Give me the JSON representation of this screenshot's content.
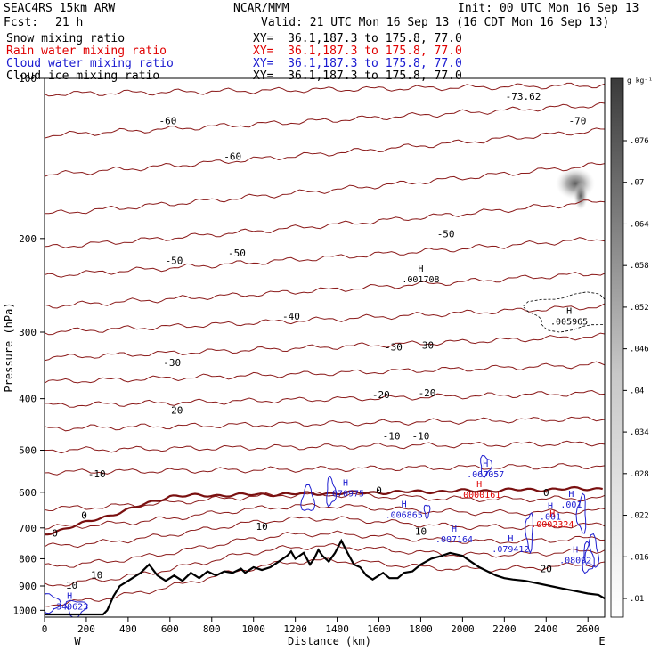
{
  "header": {
    "model": "SEAC4RS 15km ARW",
    "org": "NCAR/MMM",
    "init": "Init: 00 UTC Mon 16 Sep 13",
    "fcst_label": "Fcst:",
    "fcst_value": "21 h",
    "valid": "Valid: 21 UTC Mon 16 Sep 13 (16 CDT Mon 16 Sep 13)"
  },
  "fields": [
    {
      "name": "Snow mixing ratio",
      "xy": "XY=  36.1,187.3 to 175.8, 77.0",
      "color": "#000000"
    },
    {
      "name": "Rain water mixing ratio",
      "xy": "XY=  36.1,187.3 to 175.8, 77.0",
      "color": "#e00000"
    },
    {
      "name": "Cloud water mixing ratio",
      "xy": "XY=  36.1,187.3 to 175.8, 77.0",
      "color": "#1a1ad0"
    },
    {
      "name": "Cloud ice mixing ratio",
      "xy": "XY=  36.1,187.3 to 175.8, 77.0",
      "color": "#000000"
    }
  ],
  "colorbar": {
    "unit": "g kg⁻¹",
    "ticks": [
      ".076",
      ".07",
      ".064",
      ".058",
      ".052",
      ".046",
      ".04",
      ".034",
      ".028",
      ".022",
      ".016",
      ".01"
    ]
  },
  "chart_data": {
    "type": "cross-section",
    "xlabel": "Distance (km)",
    "ylabel": "Pressure (hPa)",
    "xlim": [
      0,
      2680
    ],
    "ylim": [
      1030,
      100
    ],
    "y_log": true,
    "x_ticks": [
      "0",
      "200",
      "400",
      "600",
      "800",
      "1000",
      "1200",
      "1400",
      "1600",
      "1800",
      "2000",
      "2200",
      "2400",
      "2600"
    ],
    "x_tick_values": [
      0,
      200,
      400,
      600,
      800,
      1000,
      1200,
      1400,
      1600,
      1800,
      2000,
      2200,
      2400,
      2600
    ],
    "y_ticks": [
      "100",
      "200",
      "300",
      "400",
      "500",
      "600",
      "700",
      "800",
      "900",
      "1000"
    ],
    "y_tick_values": [
      100,
      200,
      300,
      400,
      500,
      600,
      700,
      800,
      900,
      1000
    ],
    "endpoint_left": "W",
    "endpoint_right": "E",
    "temperature_labels": [
      {
        "text": "-70",
        "x": 2550,
        "p": 120
      },
      {
        "text": "-73.62",
        "x": 2290,
        "p": 108
      },
      {
        "text": "-60",
        "x": 590,
        "p": 120
      },
      {
        "text": "-60",
        "x": 900,
        "p": 140
      },
      {
        "text": "-50",
        "x": 620,
        "p": 220
      },
      {
        "text": "-50",
        "x": 920,
        "p": 213
      },
      {
        "text": "-50",
        "x": 1920,
        "p": 196
      },
      {
        "text": "-40",
        "x": 1180,
        "p": 280
      },
      {
        "text": "-30",
        "x": 610,
        "p": 342
      },
      {
        "text": "-30",
        "x": 1670,
        "p": 320
      },
      {
        "text": "-30",
        "x": 1820,
        "p": 317
      },
      {
        "text": "-20",
        "x": 620,
        "p": 420
      },
      {
        "text": "-20",
        "x": 1610,
        "p": 393
      },
      {
        "text": "-20",
        "x": 1830,
        "p": 390
      },
      {
        "text": "-10",
        "x": 250,
        "p": 554
      },
      {
        "text": "-10",
        "x": 1660,
        "p": 470
      },
      {
        "text": "-10",
        "x": 1800,
        "p": 470
      },
      {
        "text": "0",
        "x": 1600,
        "p": 595
      },
      {
        "text": "0",
        "x": 2400,
        "p": 600
      },
      {
        "text": "0",
        "x": 190,
        "p": 663
      },
      {
        "text": "0",
        "x": 50,
        "p": 716
      },
      {
        "text": "10",
        "x": 1040,
        "p": 695
      },
      {
        "text": "10",
        "x": 1800,
        "p": 710
      },
      {
        "text": "10",
        "x": 250,
        "p": 857
      },
      {
        "text": "10",
        "x": 130,
        "p": 897
      },
      {
        "text": "20",
        "x": 2400,
        "p": 835
      }
    ],
    "maxima": [
      {
        "value": ".001708",
        "x": 1800,
        "p": 240,
        "series": "Cloud ice mixing ratio"
      },
      {
        "value": ".005965",
        "x": 2510,
        "p": 288,
        "series": "Snow mixing ratio"
      },
      {
        "value": ".067057",
        "x": 2110,
        "p": 558,
        "series": "Cloud water mixing ratio"
      },
      {
        "value": ".070975",
        "x": 1440,
        "p": 606,
        "series": "Cloud water mixing ratio"
      },
      {
        "value": ".0000161",
        "x": 2080,
        "p": 610,
        "series": "Rain water mixing ratio"
      },
      {
        "value": ".001",
        "x": 2520,
        "p": 636,
        "series": "Cloud water mixing ratio"
      },
      {
        "value": ".006865",
        "x": 1720,
        "p": 665,
        "series": "Cloud water mixing ratio"
      },
      {
        "value": ".001",
        "x": 2420,
        "p": 670,
        "series": "Cloud water mixing ratio"
      },
      {
        "value": ".0002324",
        "x": 2430,
        "p": 693,
        "series": "Rain water mixing ratio"
      },
      {
        "value": ".007164",
        "x": 1960,
        "p": 740,
        "series": "Cloud water mixing ratio"
      },
      {
        "value": ".079412",
        "x": 2230,
        "p": 772,
        "series": "Cloud water mixing ratio"
      },
      {
        "value": ".08092",
        "x": 2540,
        "p": 810,
        "series": "Cloud water mixing ratio"
      },
      {
        "value": ".340623",
        "x": 120,
        "p": 990,
        "series": "Cloud water mixing ratio"
      }
    ],
    "terrain": [
      [
        0,
        1018
      ],
      [
        280,
        1018
      ],
      [
        300,
        1000
      ],
      [
        330,
        940
      ],
      [
        360,
        900
      ],
      [
        400,
        880
      ],
      [
        460,
        850
      ],
      [
        500,
        820
      ],
      [
        540,
        860
      ],
      [
        580,
        880
      ],
      [
        620,
        860
      ],
      [
        660,
        880
      ],
      [
        700,
        850
      ],
      [
        740,
        870
      ],
      [
        780,
        845
      ],
      [
        820,
        860
      ],
      [
        860,
        845
      ],
      [
        900,
        850
      ],
      [
        940,
        835
      ],
      [
        960,
        850
      ],
      [
        1000,
        830
      ],
      [
        1040,
        840
      ],
      [
        1080,
        830
      ],
      [
        1120,
        810
      ],
      [
        1160,
        790
      ],
      [
        1180,
        775
      ],
      [
        1200,
        800
      ],
      [
        1240,
        780
      ],
      [
        1270,
        820
      ],
      [
        1290,
        800
      ],
      [
        1310,
        770
      ],
      [
        1330,
        790
      ],
      [
        1360,
        810
      ],
      [
        1390,
        780
      ],
      [
        1420,
        740
      ],
      [
        1450,
        780
      ],
      [
        1480,
        820
      ],
      [
        1510,
        830
      ],
      [
        1540,
        860
      ],
      [
        1570,
        875
      ],
      [
        1600,
        860
      ],
      [
        1620,
        850
      ],
      [
        1650,
        870
      ],
      [
        1690,
        870
      ],
      [
        1720,
        850
      ],
      [
        1760,
        845
      ],
      [
        1800,
        820
      ],
      [
        1850,
        800
      ],
      [
        1900,
        790
      ],
      [
        1940,
        780
      ],
      [
        2000,
        790
      ],
      [
        2040,
        810
      ],
      [
        2080,
        830
      ],
      [
        2120,
        845
      ],
      [
        2160,
        860
      ],
      [
        2200,
        870
      ],
      [
        2240,
        875
      ],
      [
        2300,
        880
      ],
      [
        2360,
        890
      ],
      [
        2420,
        900
      ],
      [
        2480,
        910
      ],
      [
        2540,
        920
      ],
      [
        2600,
        930
      ],
      [
        2650,
        935
      ],
      [
        2680,
        950
      ]
    ]
  }
}
